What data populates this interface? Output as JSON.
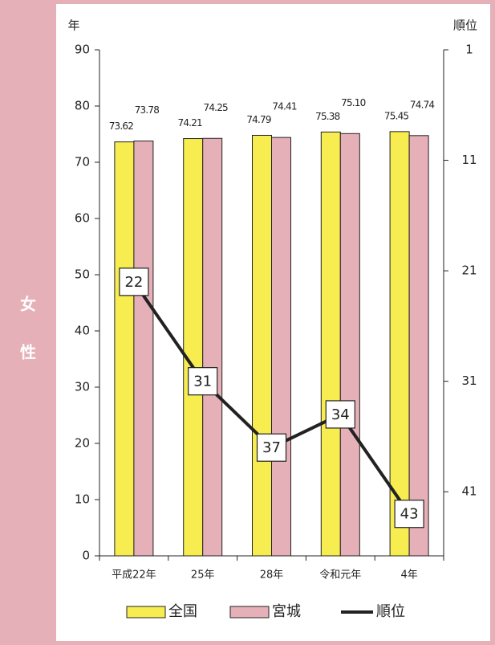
{
  "chart_data": {
    "type": "bar",
    "side_label": [
      "女",
      "性"
    ],
    "y_label": "年",
    "y2_label": "順位",
    "categories": [
      "平成22年",
      "25年",
      "28年",
      "令和元年",
      "4年"
    ],
    "series": [
      {
        "name": "全国",
        "color": "#f7ec50",
        "values": [
          73.62,
          74.21,
          74.79,
          75.38,
          75.45
        ],
        "value_labels": [
          "73.62",
          "74.21",
          "74.79",
          "75.38",
          "75.45"
        ]
      },
      {
        "name": "宮城",
        "color": "#e6b0b8",
        "values": [
          73.78,
          74.25,
          74.41,
          75.1,
          74.74
        ],
        "value_labels": [
          "73.78",
          "74.25",
          "74.41",
          "75.10",
          "74.74"
        ]
      },
      {
        "name": "順位",
        "type": "line",
        "axis": "y2",
        "color": "#222222",
        "values": [
          22,
          31,
          37,
          34,
          43
        ]
      }
    ],
    "ylim": [
      0,
      90
    ],
    "yticks": [
      0,
      10,
      20,
      30,
      40,
      50,
      60,
      70,
      80,
      90
    ],
    "y2lim": [
      46.8,
      1
    ],
    "y2ticks": [
      1,
      11,
      21,
      31,
      41
    ],
    "legend": "bottom"
  }
}
